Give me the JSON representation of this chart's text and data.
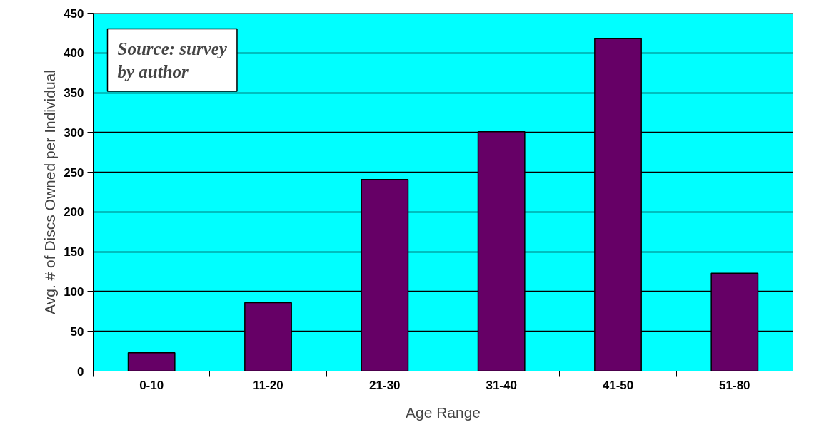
{
  "chart_data": {
    "type": "bar",
    "xlabel": "Age Range",
    "ylabel": "Avg. # of Discs Owned per Individual",
    "categories": [
      "0-10",
      "11-20",
      "21-30",
      "31-40",
      "41-50",
      "51-80"
    ],
    "values": [
      23,
      86,
      241,
      301,
      418,
      123
    ],
    "color": "#660066",
    "ylim": [
      0,
      450
    ],
    "yticks": [
      0,
      50,
      100,
      150,
      200,
      250,
      300,
      350,
      400,
      450
    ],
    "grid": "y",
    "annotations": [
      "Source: survey by author"
    ]
  }
}
